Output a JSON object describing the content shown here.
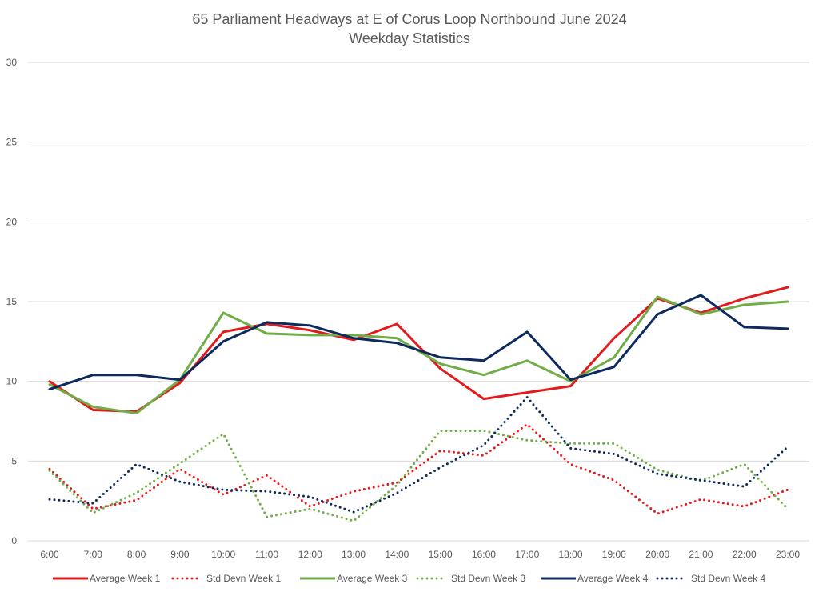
{
  "chart_data": {
    "type": "line",
    "title": "65 Parliament Headways at E of Corus Loop Northbound June 2024",
    "subtitle": "Weekday Statistics",
    "xlabel": "",
    "ylabel": "",
    "ylim": [
      0,
      30
    ],
    "yticks": [
      "0",
      "5",
      "10",
      "15",
      "20",
      "25",
      "30"
    ],
    "grid": true,
    "legend_position": "bottom",
    "categories": [
      "6:00",
      "7:00",
      "8:00",
      "9:00",
      "10:00",
      "11:00",
      "12:00",
      "13:00",
      "14:00",
      "15:00",
      "16:00",
      "17:00",
      "18:00",
      "19:00",
      "20:00",
      "21:00",
      "22:00",
      "23:00"
    ],
    "series": [
      {
        "name": "Average Week 1",
        "color": "#e31a1c",
        "style": "solid",
        "values": [
          10.0,
          8.2,
          8.1,
          9.9,
          13.1,
          13.6,
          13.2,
          12.6,
          13.6,
          10.8,
          8.9,
          9.3,
          9.7,
          12.7,
          15.2,
          14.3,
          15.2,
          15.9
        ]
      },
      {
        "name": "Std Devn Week 1",
        "color": "#e31a1c",
        "style": "dotted",
        "values": [
          4.5,
          2.0,
          2.55,
          4.5,
          2.9,
          4.1,
          2.15,
          3.1,
          3.65,
          5.65,
          5.35,
          7.3,
          4.8,
          3.8,
          1.7,
          2.6,
          2.15,
          3.2
        ]
      },
      {
        "name": "Average Week 3",
        "color": "#70ad47",
        "style": "solid",
        "values": [
          9.8,
          8.4,
          8.0,
          10.1,
          14.3,
          13.0,
          12.9,
          12.9,
          12.7,
          11.1,
          10.4,
          11.3,
          10.0,
          11.5,
          15.3,
          14.2,
          14.8,
          15.0
        ]
      },
      {
        "name": "Std Devn Week 3",
        "color": "#70ad47",
        "style": "dotted",
        "values": [
          4.4,
          1.75,
          3.0,
          4.85,
          6.7,
          1.5,
          2.0,
          1.25,
          3.5,
          6.9,
          6.9,
          6.3,
          6.1,
          6.1,
          4.45,
          3.75,
          4.8,
          2.0
        ]
      },
      {
        "name": "Average Week 4",
        "color": "#0d2a5e",
        "style": "solid",
        "values": [
          9.5,
          10.4,
          10.4,
          10.1,
          12.5,
          13.7,
          13.5,
          12.7,
          12.4,
          11.5,
          11.3,
          13.1,
          10.1,
          10.9,
          14.2,
          15.4,
          13.4,
          13.3
        ]
      },
      {
        "name": "Std Devn Week 4",
        "color": "#0d2a5e",
        "style": "dotted",
        "values": [
          2.6,
          2.35,
          4.8,
          3.7,
          3.2,
          3.1,
          2.75,
          1.8,
          3.0,
          4.6,
          6.0,
          9.0,
          5.8,
          5.45,
          4.2,
          3.8,
          3.4,
          5.9
        ]
      }
    ]
  }
}
